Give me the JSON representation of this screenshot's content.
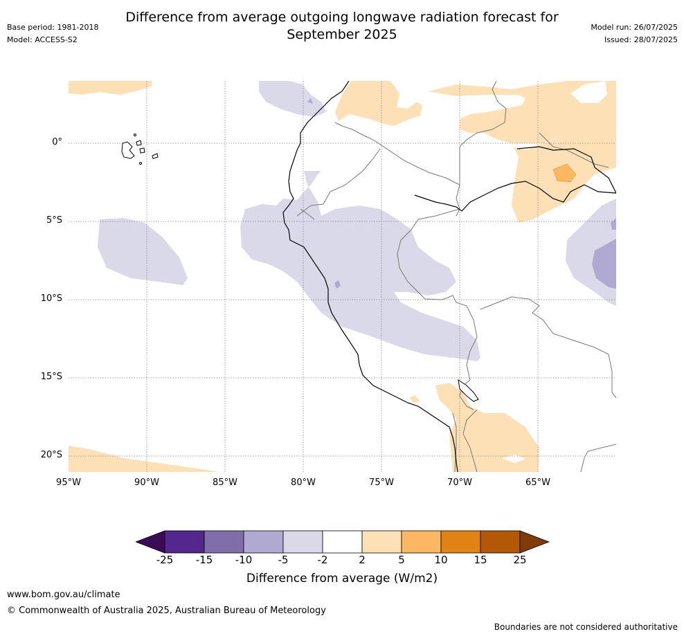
{
  "title_line1": "Difference from average outgoing longwave radiation forecast for",
  "title_line2": "September 2025",
  "base_period": "Base period: 1981-2018",
  "model": "Model: ACCESS-S2",
  "model_run": "Model run: 26/07/2025",
  "issued": "Issued: 28/07/2025",
  "lat_labels": [
    "0°",
    "5°S",
    "10°S",
    "15°S",
    "20°S"
  ],
  "lon_labels": [
    "95°W",
    "90°W",
    "85°W",
    "80°W",
    "75°W",
    "70°W",
    "65°W"
  ],
  "legend": {
    "label": "Difference from average (W/m2)",
    "ticks": [
      "-25",
      "-15",
      "-10",
      "-5",
      "-2",
      "2",
      "5",
      "10",
      "15",
      "25"
    ],
    "colors": [
      "#3a0b57",
      "#54278f",
      "#7f6ea9",
      "#b0a9d1",
      "#d9d9ea",
      "#ffffff",
      "#fde0b6",
      "#fbb862",
      "#e08214",
      "#b35806",
      "#7f3b08"
    ]
  },
  "footer_url": "www.bom.gov.au/climate",
  "copyright": "© Commonwealth of Australia 2025, Australian Bureau of Meteorology",
  "disclaimer": "Boundaries are not considered authoritative"
}
